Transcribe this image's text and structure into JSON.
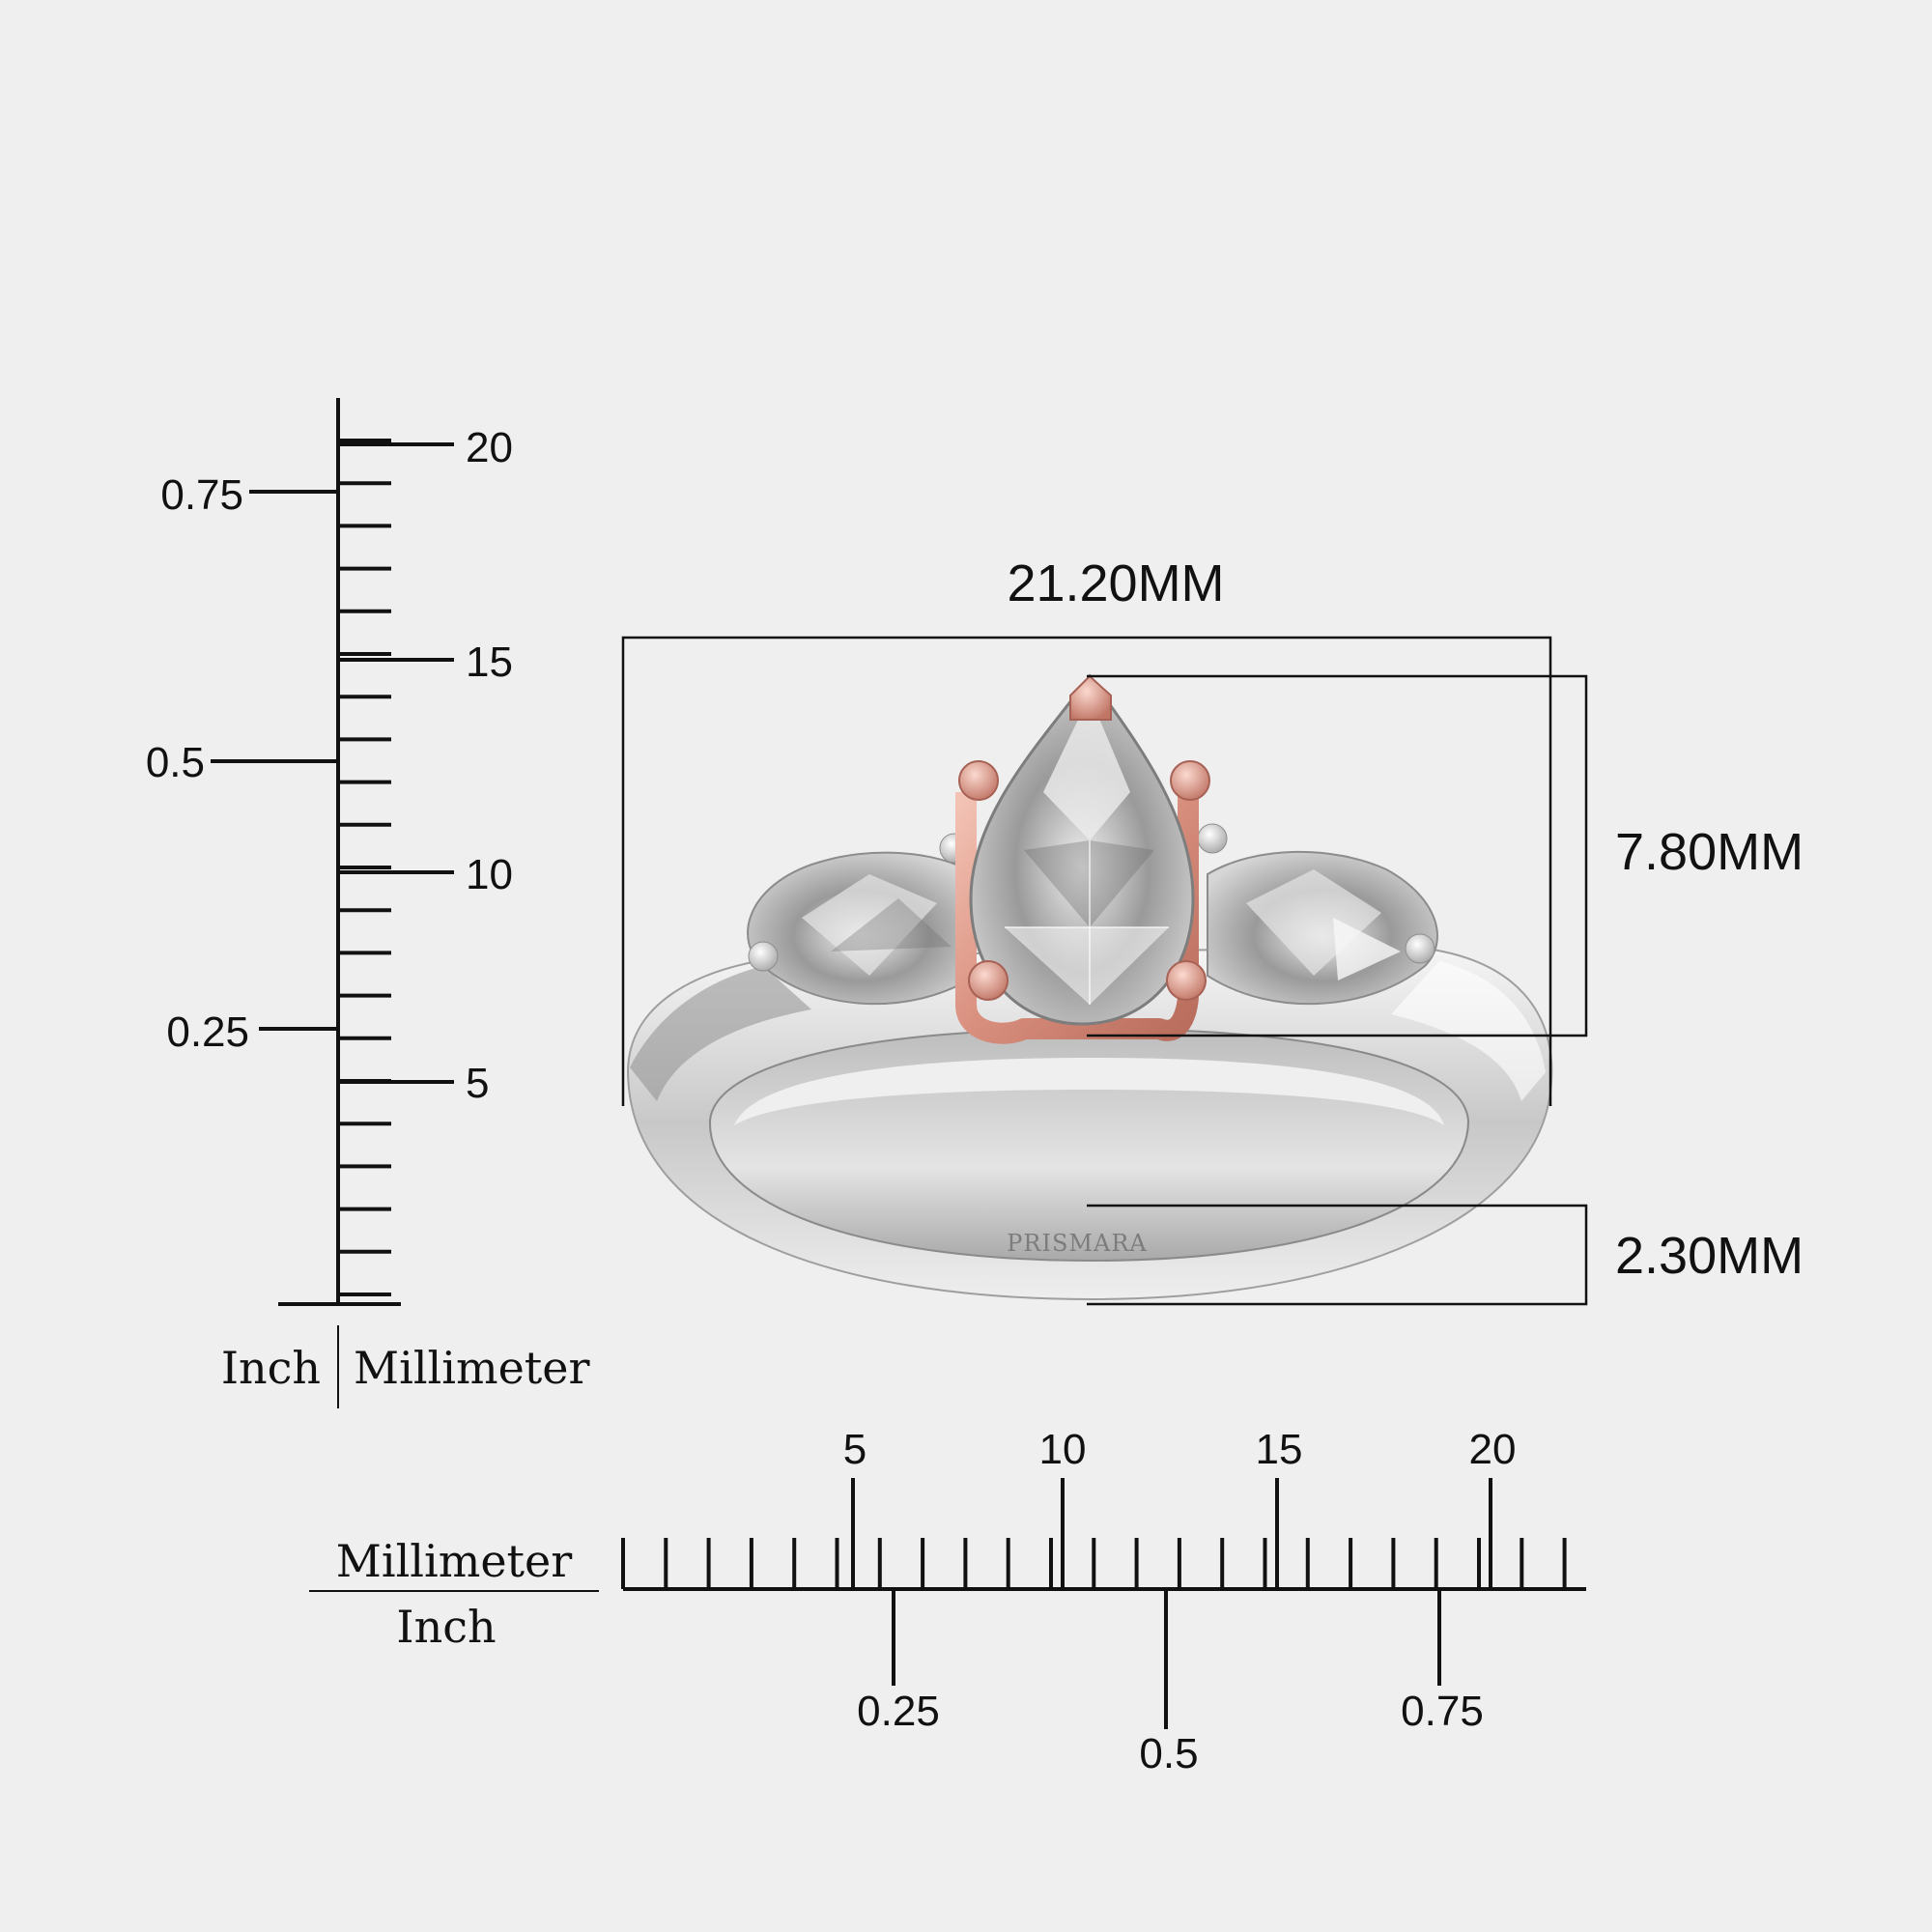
{
  "vertical_scale": {
    "mm_labels": [
      "5",
      "10",
      "15",
      "20"
    ],
    "inch_labels": [
      "0.25",
      "0.5",
      "0.75"
    ],
    "unit_left": "Inch",
    "unit_right": "Millimeter"
  },
  "horizontal_scale": {
    "mm_labels": [
      "5",
      "10",
      "15",
      "20"
    ],
    "inch_labels": [
      "0.25",
      "0.5",
      "0.75"
    ],
    "unit_top": "Millimeter",
    "unit_bottom": "Inch"
  },
  "dimensions": {
    "width": "21.20MM",
    "head_height": "7.80MM",
    "band_width": "2.30MM"
  },
  "ring": {
    "engraving": "PRISMARA",
    "colors": {
      "band_metal": "#d9d9d9",
      "prong_center": "#d99a8c",
      "stone": "#c9c9c9"
    }
  }
}
